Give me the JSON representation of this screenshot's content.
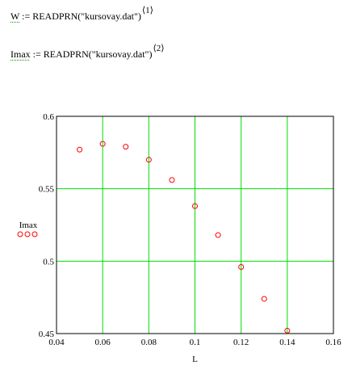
{
  "expressions": [
    {
      "variable": "W",
      "assign": " := ",
      "call": "READPRN(\"kursovay.dat\")",
      "column": "⟨1⟩"
    },
    {
      "variable": "Imax",
      "assign": " := ",
      "call": "READPRN(\"kursovay.dat\")",
      "column": "⟨2⟩"
    }
  ],
  "colors": {
    "grid": "#00dd00",
    "marker": "#ff0000",
    "frame": "#000000",
    "background": "#ffffff"
  },
  "chart_data": {
    "type": "scatter",
    "xlabel": "L",
    "ylabel": "Imax",
    "xlim": [
      0.04,
      0.16
    ],
    "ylim": [
      0.45,
      0.6
    ],
    "x_ticks": [
      "0.04",
      "0.06",
      "0.08",
      "0.1",
      "0.12",
      "0.14",
      "0.16"
    ],
    "y_ticks": [
      "0.6",
      "0.55",
      "0.5",
      "0.45"
    ],
    "y_tick_values": [
      0.6,
      0.55,
      0.5,
      0.45
    ],
    "x_tick_values": [
      0.04,
      0.06,
      0.08,
      0.1,
      0.12,
      0.14,
      0.16
    ],
    "grid": true,
    "marker": "circle",
    "series": [
      {
        "name": "Imax",
        "x": [
          0.05,
          0.06,
          0.07,
          0.08,
          0.09,
          0.1,
          0.11,
          0.12,
          0.13,
          0.14
        ],
        "y": [
          0.577,
          0.581,
          0.579,
          0.57,
          0.556,
          0.538,
          0.518,
          0.496,
          0.474,
          0.452
        ]
      }
    ]
  }
}
